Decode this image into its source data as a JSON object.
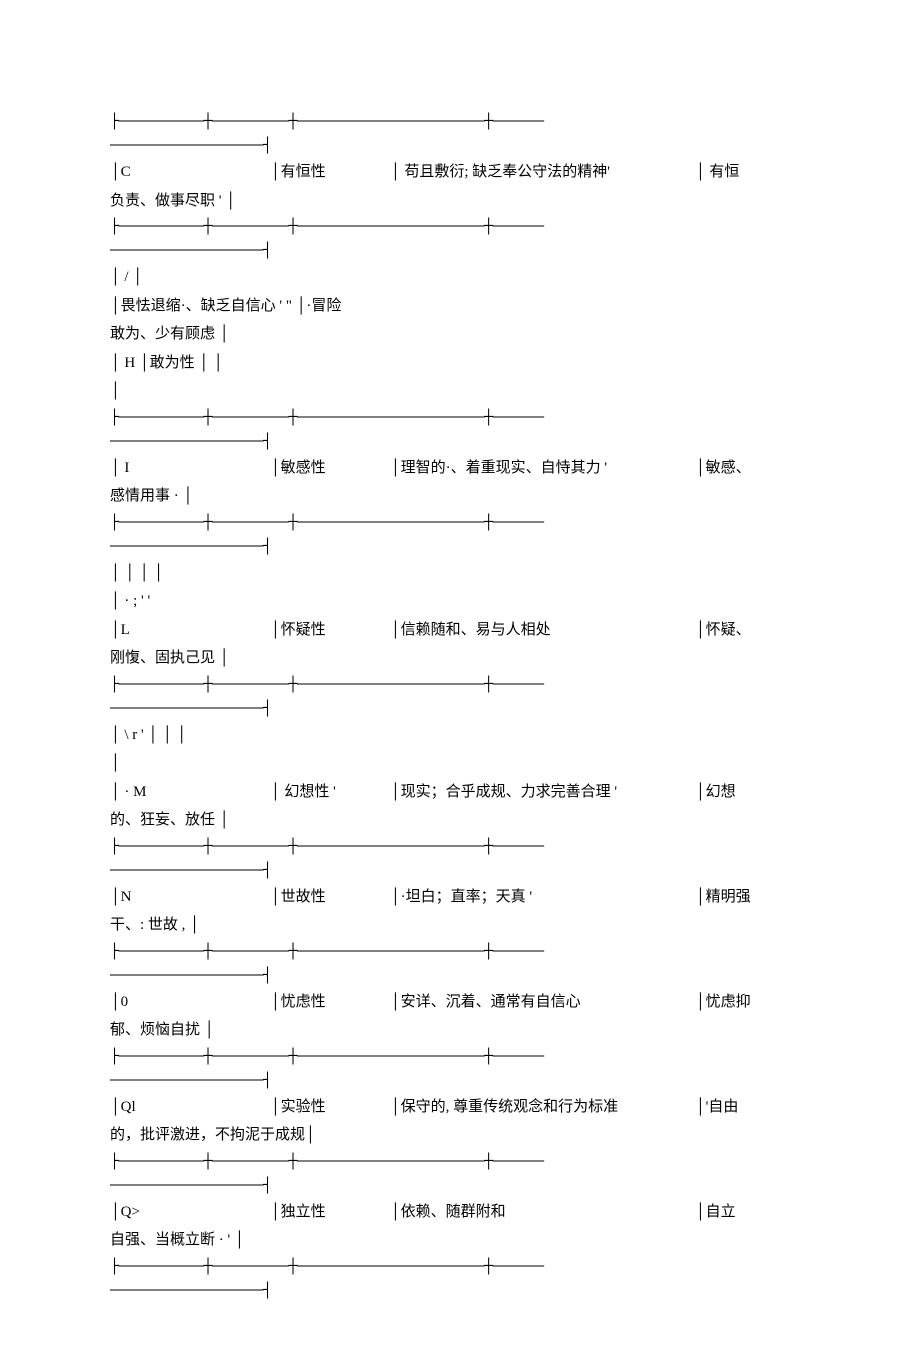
{
  "separators": {
    "top": "├——————————┼—————————┼——————————————————————┼——————",
    "bottom": "——————————————————┤"
  },
  "rows": [
    {
      "code": "C",
      "factor": "有恒性",
      "low": "苟且敷衍; 缺乏奉公守法的精神'",
      "high": "有恒",
      "wrap": "负责、做事尽职        '           │",
      "extra": null,
      "code_pad": "│C",
      "factor_pad": "│有恒性",
      "low_pad": "│       苟且敷衍; 缺乏奉公守法的精神'",
      "high_pad": "│     有恒"
    },
    {
      "code": "/",
      "factor": "",
      "low": "畏怯退缩·、缺乏自信心       '       \"",
      "high": "·冒险",
      "wrap": "敢为、少有顾虑              │",
      "extra": "│     H                   │敢为性         │                                                         │",
      "extra2": "│",
      "code_pad": "│        /              │",
      "factor_pad": "",
      "low_pad": "│畏怯退缩·、缺乏自信心       '       \"      │·冒险",
      "high_pad": ""
    },
    {
      "code": "I",
      "factor": "敏感性",
      "low": "理智的·、着重现实、自恃其力       '",
      "high": "敏感、",
      "wrap": "感情用事        ·           │",
      "extra": null,
      "code_pad": "│        I",
      "factor_pad": "│敏感性",
      "low_pad": "│理智的·、着重现实、自恃其力       '",
      "high_pad": "│敏感、"
    },
    {
      "code": "L",
      "factor": "怀疑性",
      "low": "信赖随和、易与人相处",
      "high": "怀疑、",
      "wrap": "刚愎、固执己见              │",
      "extra_pre1": "│                                                 │                                    │                   │",
      "extra_pre2": "│     ·       ;       '    '",
      "code_pad": "│L",
      "factor_pad": "│怀疑性",
      "low_pad": "│信赖随和、易与人相处",
      "high_pad": "│怀疑、"
    },
    {
      "code": "·    M",
      "factor": "幻想性 '",
      "low": "现实；合乎成规、力求完善合理     '",
      "high": "幻想",
      "wrap": "的、狂妄、放任              │",
      "extra_pre1": "│        \\      r       '  │                    │                                                          │",
      "extra_pre2": "│",
      "code_pad": "│       ·    M",
      "factor_pad": "│       幻想性 '",
      "low_pad": "│现实；合乎成规、力求完善合理     '",
      "high_pad": "│幻想"
    },
    {
      "code": "N",
      "factor": "世故性",
      "low": "·坦白；直率；天真        '",
      "high": "精明强",
      "wrap": "干、: 世故       ,           │",
      "extra": null,
      "code_pad": "│N",
      "factor_pad": "│世故性",
      "low_pad": "│·坦白；直率；天真        '",
      "high_pad": "│精明强"
    },
    {
      "code": "0",
      "factor": "忧虑性",
      "low": "安详、沉着、通常有自信心",
      "high": "忧虑抑",
      "wrap": "郁、烦恼自扰                │",
      "extra": null,
      "code_pad": "│0",
      "factor_pad": "│忧虑性",
      "low_pad": "│安详、沉着、通常有自信心",
      "high_pad": "│忧虑抑"
    },
    {
      "code": "Ql",
      "factor": "实验性",
      "low": "保守的, 尊重传统观念和行为标准",
      "high": "'自由",
      "wrap": "的，批评激进，不拘泥于成规│",
      "extra": null,
      "code_pad": "│Ql",
      "factor_pad": "│实验性",
      "low_pad": "│保守的, 尊重传统观念和行为标准",
      "high_pad": "│'自由"
    },
    {
      "code": "Q>",
      "factor": "独立性",
      "low": "依赖、随群附和",
      "high": "自立",
      "wrap": "自强、当概立断        ·  '        │",
      "extra": null,
      "code_pad": "│Q>",
      "factor_pad": "│独立性",
      "low_pad": "│依赖、随群附和",
      "high_pad": "│自立"
    }
  ]
}
